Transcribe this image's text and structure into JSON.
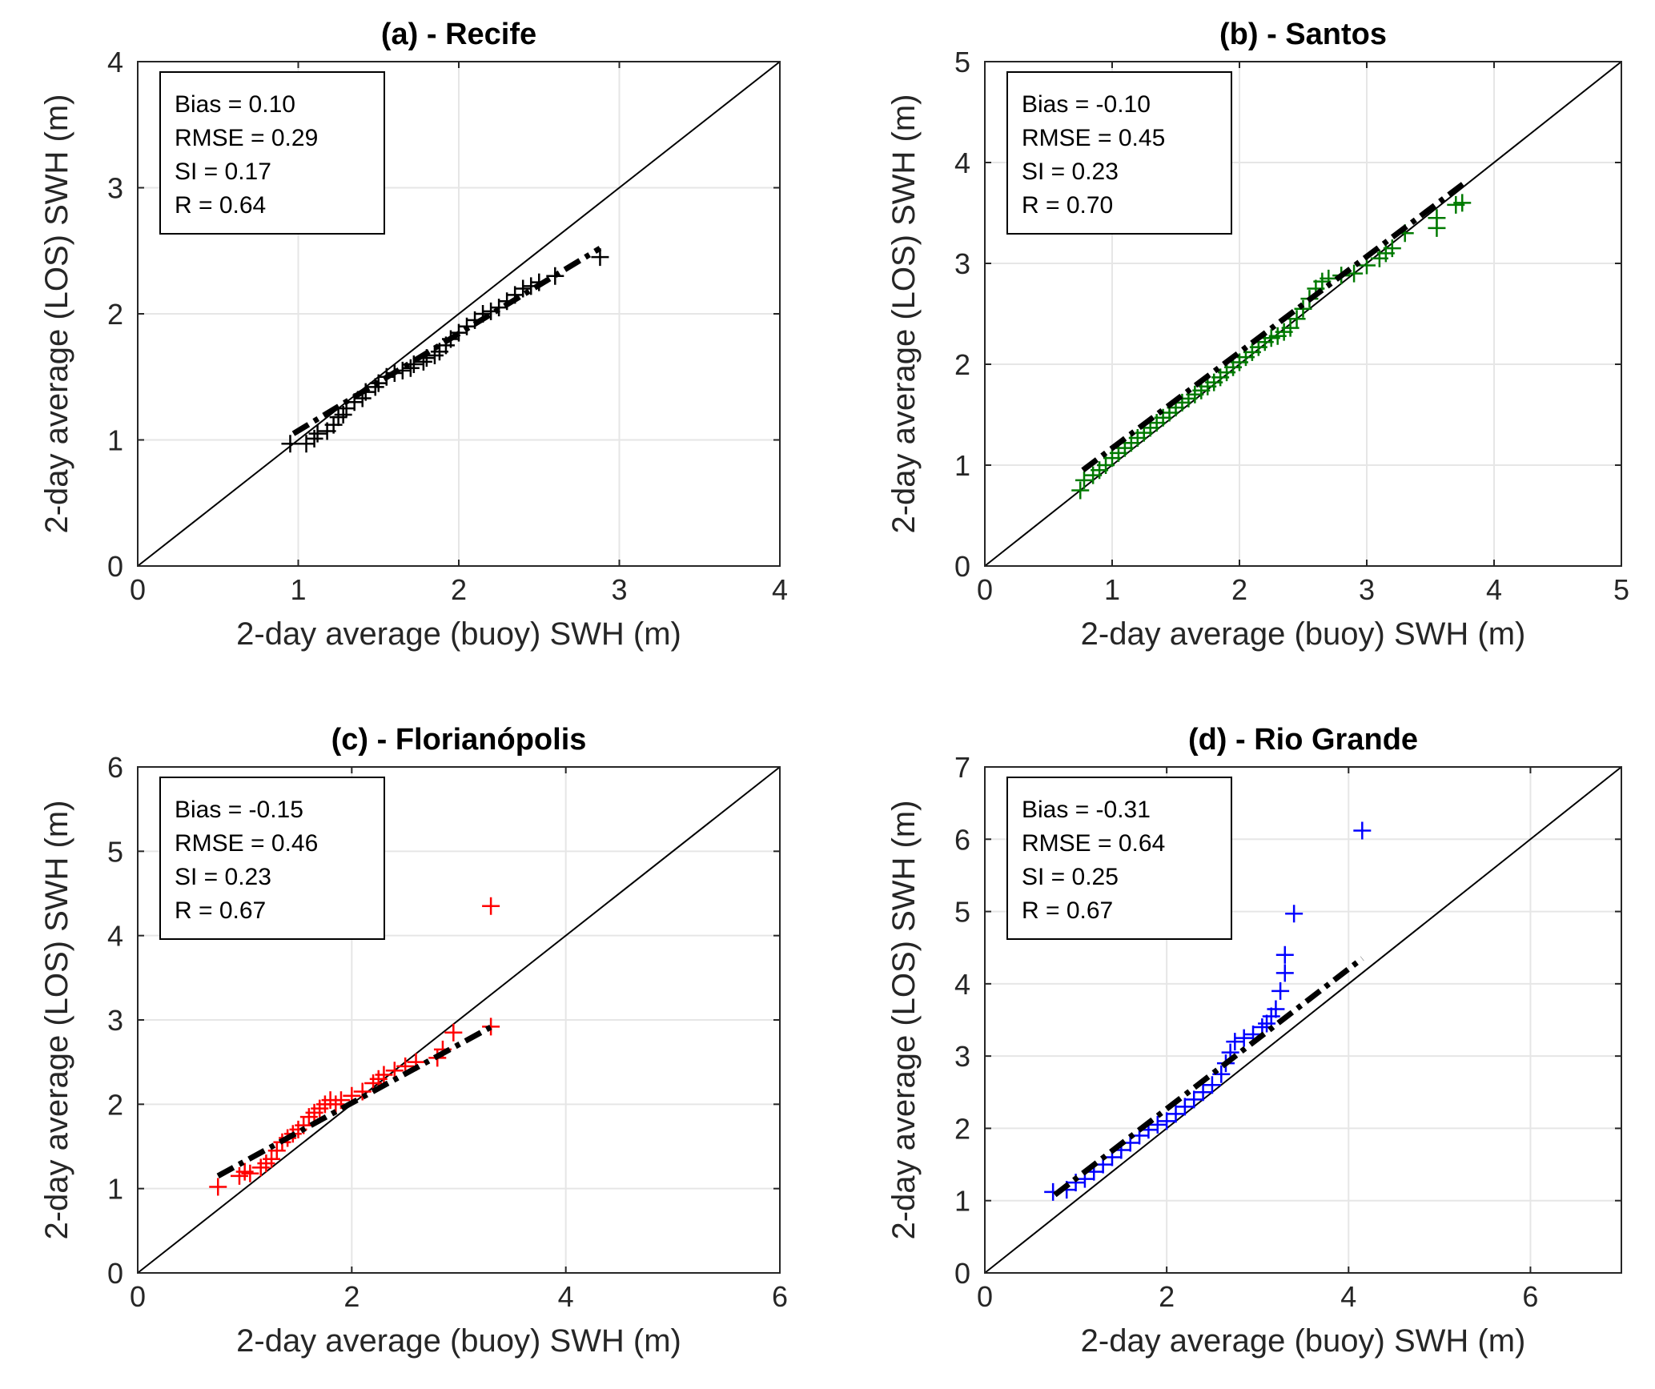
{
  "colors": {
    "black": "#000000",
    "green": "#007a00",
    "red": "#ff0000",
    "blue": "#0000ff"
  },
  "chart_data": [
    {
      "type": "scatter",
      "title": "(a) - Recife",
      "xlabel": "2-day average (buoy) SWH (m)",
      "ylabel": "2-day average (LOS) SWH (m)",
      "xlim": [
        0,
        4
      ],
      "ylim": [
        0,
        4
      ],
      "xticks": [
        0,
        1,
        2,
        3,
        4
      ],
      "yticks": [
        0,
        1,
        2,
        3,
        4
      ],
      "grid": true,
      "legend_position": "top-left",
      "marker_color": "#000000",
      "stats": [
        "Bias = 0.10",
        "RMSE = 0.29",
        "SI   = 0.17",
        "R    = 0.64"
      ],
      "fit": {
        "x": [
          0.97,
          2.88
        ],
        "y": [
          1.05,
          2.52
        ]
      },
      "points": [
        [
          0.95,
          0.97
        ],
        [
          1.05,
          0.97
        ],
        [
          1.1,
          1.01
        ],
        [
          1.12,
          1.05
        ],
        [
          1.18,
          1.07
        ],
        [
          1.22,
          1.12
        ],
        [
          1.25,
          1.18
        ],
        [
          1.28,
          1.2
        ],
        [
          1.3,
          1.25
        ],
        [
          1.35,
          1.3
        ],
        [
          1.4,
          1.33
        ],
        [
          1.42,
          1.38
        ],
        [
          1.48,
          1.42
        ],
        [
          1.5,
          1.45
        ],
        [
          1.55,
          1.5
        ],
        [
          1.6,
          1.53
        ],
        [
          1.65,
          1.55
        ],
        [
          1.7,
          1.57
        ],
        [
          1.72,
          1.6
        ],
        [
          1.78,
          1.62
        ],
        [
          1.8,
          1.65
        ],
        [
          1.85,
          1.67
        ],
        [
          1.88,
          1.7
        ],
        [
          1.92,
          1.75
        ],
        [
          1.95,
          1.8
        ],
        [
          2.0,
          1.85
        ],
        [
          2.05,
          1.9
        ],
        [
          2.1,
          1.95
        ],
        [
          2.15,
          2.0
        ],
        [
          2.2,
          2.02
        ],
        [
          2.25,
          2.05
        ],
        [
          2.3,
          2.1
        ],
        [
          2.35,
          2.15
        ],
        [
          2.4,
          2.2
        ],
        [
          2.45,
          2.22
        ],
        [
          2.5,
          2.25
        ],
        [
          2.6,
          2.3
        ],
        [
          2.88,
          2.45
        ]
      ]
    },
    {
      "type": "scatter",
      "title": "(b) - Santos",
      "xlabel": "2-day average (buoy) SWH (m)",
      "ylabel": "2-day average (LOS) SWH (m)",
      "xlim": [
        0,
        5
      ],
      "ylim": [
        0,
        5
      ],
      "xticks": [
        0,
        1,
        2,
        3,
        4,
        5
      ],
      "yticks": [
        0,
        1,
        2,
        3,
        4,
        5
      ],
      "grid": true,
      "legend_position": "top-left",
      "marker_color": "#007a00",
      "stats": [
        "Bias = -0.10",
        "RMSE = 0.45",
        "SI   = 0.23",
        "R    = 0.70"
      ],
      "fit": {
        "x": [
          0.77,
          3.77
        ],
        "y": [
          0.95,
          3.8
        ]
      },
      "points": [
        [
          0.75,
          0.75
        ],
        [
          0.78,
          0.85
        ],
        [
          0.85,
          0.9
        ],
        [
          0.9,
          0.95
        ],
        [
          0.95,
          1.0
        ],
        [
          1.0,
          1.07
        ],
        [
          1.05,
          1.12
        ],
        [
          1.1,
          1.17
        ],
        [
          1.15,
          1.22
        ],
        [
          1.2,
          1.27
        ],
        [
          1.25,
          1.32
        ],
        [
          1.3,
          1.37
        ],
        [
          1.35,
          1.42
        ],
        [
          1.4,
          1.47
        ],
        [
          1.45,
          1.52
        ],
        [
          1.5,
          1.57
        ],
        [
          1.55,
          1.62
        ],
        [
          1.6,
          1.66
        ],
        [
          1.65,
          1.7
        ],
        [
          1.7,
          1.74
        ],
        [
          1.75,
          1.78
        ],
        [
          1.8,
          1.82
        ],
        [
          1.85,
          1.87
        ],
        [
          1.9,
          1.92
        ],
        [
          1.95,
          1.97
        ],
        [
          2.0,
          2.02
        ],
        [
          2.05,
          2.07
        ],
        [
          2.1,
          2.12
        ],
        [
          2.15,
          2.17
        ],
        [
          2.2,
          2.22
        ],
        [
          2.25,
          2.26
        ],
        [
          2.3,
          2.28
        ],
        [
          2.35,
          2.32
        ],
        [
          2.4,
          2.36
        ],
        [
          2.45,
          2.45
        ],
        [
          2.5,
          2.55
        ],
        [
          2.55,
          2.65
        ],
        [
          2.6,
          2.75
        ],
        [
          2.65,
          2.82
        ],
        [
          2.7,
          2.85
        ],
        [
          2.8,
          2.88
        ],
        [
          2.9,
          2.9
        ],
        [
          3.0,
          2.98
        ],
        [
          3.1,
          3.05
        ],
        [
          3.15,
          3.1
        ],
        [
          3.2,
          3.15
        ],
        [
          3.3,
          3.3
        ],
        [
          3.55,
          3.45
        ],
        [
          3.55,
          3.35
        ],
        [
          3.7,
          3.58
        ],
        [
          3.75,
          3.6
        ]
      ]
    },
    {
      "type": "scatter",
      "title": "(c) - Florianópolis",
      "xlabel": "2-day average (buoy) SWH (m)",
      "ylabel": "2-day average (LOS) SWH (m)",
      "xlim": [
        0,
        6
      ],
      "ylim": [
        0,
        6
      ],
      "xticks": [
        0,
        2,
        4,
        6
      ],
      "yticks": [
        0,
        1,
        2,
        3,
        4,
        5,
        6
      ],
      "grid": true,
      "legend_position": "top-left",
      "marker_color": "#ff0000",
      "stats": [
        "Bias = -0.15",
        "RMSE = 0.46",
        "SI   = 0.23",
        "R    = 0.67"
      ],
      "fit": {
        "x": [
          0.75,
          3.35
        ],
        "y": [
          1.15,
          2.95
        ]
      },
      "points": [
        [
          0.75,
          1.02
        ],
        [
          0.95,
          1.15
        ],
        [
          1.0,
          1.2
        ],
        [
          1.05,
          1.18
        ],
        [
          1.15,
          1.25
        ],
        [
          1.2,
          1.3
        ],
        [
          1.25,
          1.35
        ],
        [
          1.3,
          1.45
        ],
        [
          1.35,
          1.55
        ],
        [
          1.4,
          1.6
        ],
        [
          1.45,
          1.65
        ],
        [
          1.5,
          1.7
        ],
        [
          1.55,
          1.75
        ],
        [
          1.6,
          1.85
        ],
        [
          1.65,
          1.9
        ],
        [
          1.7,
          1.95
        ],
        [
          1.75,
          2.0
        ],
        [
          1.8,
          2.05
        ],
        [
          1.85,
          2.0
        ],
        [
          1.9,
          2.05
        ],
        [
          2.0,
          2.1
        ],
        [
          2.1,
          2.15
        ],
        [
          2.2,
          2.25
        ],
        [
          2.25,
          2.3
        ],
        [
          2.3,
          2.35
        ],
        [
          2.4,
          2.4
        ],
        [
          2.5,
          2.45
        ],
        [
          2.6,
          2.5
        ],
        [
          2.8,
          2.55
        ],
        [
          2.85,
          2.65
        ],
        [
          2.95,
          2.85
        ],
        [
          3.3,
          2.92
        ],
        [
          3.3,
          4.35
        ]
      ]
    },
    {
      "type": "scatter",
      "title": "(d) - Rio Grande",
      "xlabel": "2-day average (buoy) SWH (m)",
      "ylabel": "2-day average (LOS) SWH (m)",
      "xlim": [
        0,
        7
      ],
      "ylim": [
        0,
        7
      ],
      "xticks": [
        0,
        2,
        4,
        6
      ],
      "yticks": [
        0,
        1,
        2,
        3,
        4,
        5,
        6,
        7
      ],
      "grid": true,
      "legend_position": "top-left",
      "marker_color": "#0000ff",
      "stats": [
        "Bias = -0.31",
        "RMSE = 0.64",
        "SI   = 0.25",
        "R    = 0.67"
      ],
      "fit": {
        "x": [
          0.77,
          4.15
        ],
        "y": [
          1.08,
          4.35
        ]
      },
      "points": [
        [
          0.75,
          1.12
        ],
        [
          0.9,
          1.15
        ],
        [
          1.0,
          1.25
        ],
        [
          1.1,
          1.3
        ],
        [
          1.2,
          1.4
        ],
        [
          1.3,
          1.5
        ],
        [
          1.4,
          1.6
        ],
        [
          1.5,
          1.7
        ],
        [
          1.6,
          1.8
        ],
        [
          1.7,
          1.9
        ],
        [
          1.8,
          1.98
        ],
        [
          1.9,
          2.05
        ],
        [
          2.0,
          2.1
        ],
        [
          2.1,
          2.2
        ],
        [
          2.2,
          2.3
        ],
        [
          2.3,
          2.4
        ],
        [
          2.4,
          2.5
        ],
        [
          2.5,
          2.6
        ],
        [
          2.6,
          2.75
        ],
        [
          2.65,
          2.9
        ],
        [
          2.7,
          3.05
        ],
        [
          2.75,
          3.2
        ],
        [
          2.85,
          3.25
        ],
        [
          2.95,
          3.3
        ],
        [
          3.05,
          3.4
        ],
        [
          3.1,
          3.45
        ],
        [
          3.15,
          3.55
        ],
        [
          3.2,
          3.65
        ],
        [
          3.25,
          3.9
        ],
        [
          3.3,
          4.15
        ],
        [
          3.3,
          4.4
        ],
        [
          3.4,
          4.97
        ],
        [
          4.15,
          6.12
        ]
      ]
    }
  ]
}
